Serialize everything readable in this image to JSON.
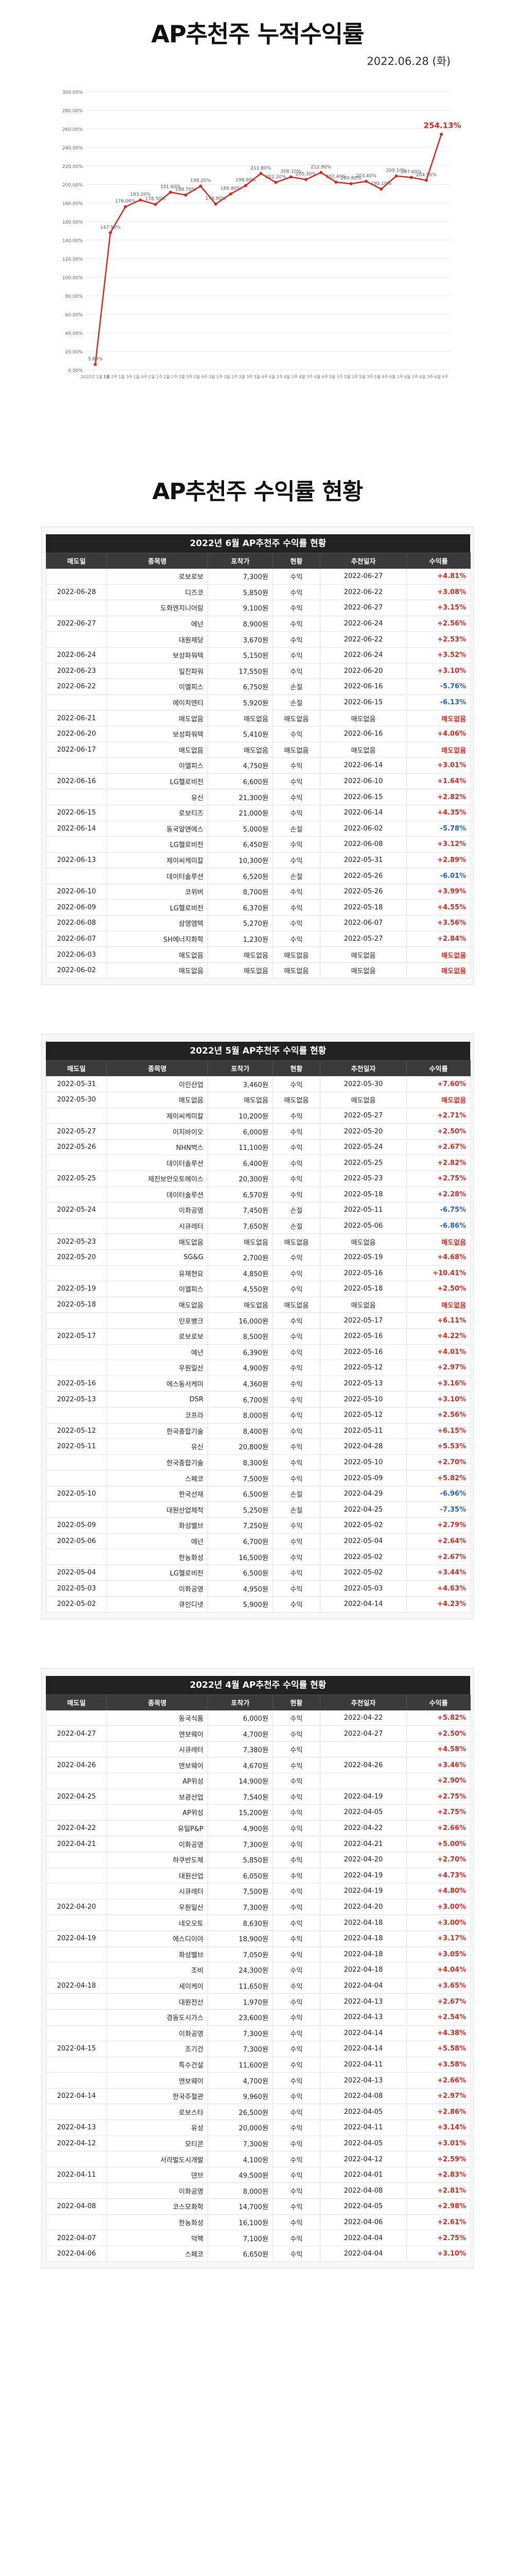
{
  "header": {
    "title": "AP추천주 누적수익률",
    "date": "2022.06.28 (화)"
  },
  "chart_data": {
    "type": "line",
    "title": "",
    "xlabel": "",
    "ylabel": "",
    "ylim": [
      0,
      300
    ],
    "y_ticks": [
      "0.00%",
      "20.00%",
      "40.00%",
      "60.00%",
      "80.00%",
      "100.00%",
      "120.00%",
      "140.00%",
      "160.00%",
      "180.00%",
      "200.00%",
      "220.00%",
      "240.00%",
      "260.00%",
      "280.00%",
      "300.00%"
    ],
    "x": [
      "2022년 1월 1주",
      "1월 2주",
      "1월 3주",
      "1월 4주",
      "2월 1주",
      "2월 2주",
      "2월 3주",
      "2월 4주",
      "3월 1주",
      "3월 2주",
      "3월 3주",
      "3월 4주",
      "4월 1주",
      "4월 2주",
      "4월 3주",
      "4월 4주",
      "5월 1주",
      "5월 2주",
      "5월 3주",
      "5월 4주",
      "6월 1주",
      "6월 2주",
      "6월 3주",
      "6월 4주"
    ],
    "values": [
      5.9,
      147.9,
      176.0,
      183.2,
      178.5,
      191.6,
      188.7,
      198.2,
      178.9,
      189.8,
      198.9,
      211.8,
      202.2,
      208.1,
      205.3,
      212.9,
      202.4,
      200.8,
      203.4,
      195.1,
      209.1,
      207.6,
      204.5,
      254.13
    ],
    "point_labels": [
      "5.89%",
      "147.90%",
      "176.00%",
      "183.20%",
      "178.50%",
      "191.60%",
      "188.70%",
      "198.20%",
      "178.90%",
      "189.80%",
      "198.90%",
      "211.80%",
      "202.20%",
      "208.10%",
      "205.30%",
      "212.90%",
      "202.40%",
      "200.80%",
      "203.40%",
      "195.10%",
      "209.10%",
      "207.60%",
      "204.50%",
      "254.13%"
    ],
    "grid": true,
    "color": "#e0261d"
  },
  "section": {
    "title": "AP추천주 수익률 현황"
  },
  "columns": [
    "매도일",
    "종목명",
    "포착가",
    "현황",
    "추천일자",
    "수익률"
  ],
  "tables": [
    {
      "caption": "2022년 6월 AP추천주 수익률 현황",
      "rows": [
        [
          "",
          "로보로보",
          "7,300원",
          "수익",
          "2022-06-27",
          "+4.81%"
        ],
        [
          "2022-06-28",
          "디즈코",
          "5,850원",
          "수익",
          "2022-06-22",
          "+3.08%"
        ],
        [
          "",
          "도화엔지니어링",
          "9,100원",
          "수익",
          "2022-06-27",
          "+3.15%"
        ],
        [
          "2022-06-27",
          "에넌",
          "8,900원",
          "수익",
          "2022-06-24",
          "+2.56%"
        ],
        [
          "",
          "대원제당",
          "3,670원",
          "수익",
          "2022-06-22",
          "+2.53%"
        ],
        [
          "2022-06-24",
          "보성파워텍",
          "5,150원",
          "수익",
          "2022-06-24",
          "+3.52%"
        ],
        [
          "2022-06-23",
          "일진파워",
          "17,550원",
          "수익",
          "2022-06-20",
          "+3.10%"
        ],
        [
          "2022-06-22",
          "이엘피스",
          "6,750원",
          "손절",
          "2022-06-16",
          "-5.76%"
        ],
        [
          "",
          "에이치엔티",
          "5,920원",
          "손절",
          "2022-06-15",
          "-6.13%"
        ],
        [
          "2022-06-21",
          "매도없음",
          "매도없음",
          "매도없음",
          "매도없음",
          "매도없음"
        ],
        [
          "2022-06-20",
          "보성파워텍",
          "5,410원",
          "수익",
          "2022-06-16",
          "+4.06%"
        ],
        [
          "2022-06-17",
          "매도없음",
          "매도없음",
          "매도없음",
          "매도없음",
          "매도없음"
        ],
        [
          "",
          "이엘피스",
          "4,750원",
          "수익",
          "2022-06-14",
          "+3.01%"
        ],
        [
          "2022-06-16",
          "LG헬로비전",
          "6,600원",
          "수익",
          "2022-06-10",
          "+1.64%"
        ],
        [
          "",
          "유신",
          "21,300원",
          "수익",
          "2022-06-15",
          "+2.82%"
        ],
        [
          "2022-06-15",
          "로보티즈",
          "21,000원",
          "수익",
          "2022-06-14",
          "+4.35%"
        ],
        [
          "2022-06-14",
          "동국알앤에스",
          "5,000원",
          "손절",
          "2022-06-02",
          "-5.78%"
        ],
        [
          "",
          "LG헬로비전",
          "6,450원",
          "수익",
          "2022-06-08",
          "+3.12%"
        ],
        [
          "2022-06-13",
          "제이씨케미칼",
          "10,300원",
          "수익",
          "2022-05-31",
          "+2.89%"
        ],
        [
          "",
          "데이터솔루션",
          "6,520원",
          "손절",
          "2022-05-26",
          "-6.01%"
        ],
        [
          "2022-06-10",
          "코위버",
          "8,700원",
          "수익",
          "2022-05-26",
          "+3.99%"
        ],
        [
          "2022-06-09",
          "LG헬로비전",
          "6,370원",
          "수익",
          "2022-05-18",
          "+4.55%"
        ],
        [
          "2022-06-08",
          "삼영엠텍",
          "5,270원",
          "수익",
          "2022-06-07",
          "+3.56%"
        ],
        [
          "2022-06-07",
          "SH에너지화학",
          "1,230원",
          "수익",
          "2022-05-27",
          "+2.84%"
        ],
        [
          "2022-06-03",
          "매도없음",
          "매도없음",
          "매도없음",
          "매도없음",
          "매도없음"
        ],
        [
          "2022-06-02",
          "매도없음",
          "매도없음",
          "매도없음",
          "매도없음",
          "매도없음"
        ]
      ]
    },
    {
      "caption": "2022년 5월 AP추천주 수익률 현황",
      "rows": [
        [
          "2022-05-31",
          "이인산업",
          "3,460원",
          "수익",
          "2022-05-30",
          "+7.60%"
        ],
        [
          "2022-05-30",
          "매도없음",
          "매도없음",
          "매도없음",
          "매도없음",
          "매도없음"
        ],
        [
          "",
          "제이씨케미칼",
          "10,200원",
          "수익",
          "2022-05-27",
          "+2.71%"
        ],
        [
          "2022-05-27",
          "이지바이오",
          "6,000원",
          "수익",
          "2022-05-20",
          "+2.50%"
        ],
        [
          "2022-05-26",
          "NHN벅스",
          "11,100원",
          "수익",
          "2022-05-24",
          "+2.67%"
        ],
        [
          "",
          "데이터솔루션",
          "6,400원",
          "수익",
          "2022-05-25",
          "+2.82%"
        ],
        [
          "2022-05-25",
          "제진보안오토메이스",
          "20,300원",
          "수익",
          "2022-05-23",
          "+2.75%"
        ],
        [
          "",
          "데이터솔루션",
          "6,570원",
          "수익",
          "2022-05-18",
          "+2.28%"
        ],
        [
          "2022-05-24",
          "이화공영",
          "7,450원",
          "손절",
          "2022-05-11",
          "-6.75%"
        ],
        [
          "",
          "시큐레터",
          "7,650원",
          "손절",
          "2022-05-06",
          "-6.86%"
        ],
        [
          "2022-05-23",
          "매도없음",
          "매도없음",
          "매도없음",
          "매도없음",
          "매도없음"
        ],
        [
          "2022-05-20",
          "SG&G",
          "2,700원",
          "수익",
          "2022-05-19",
          "+4.68%"
        ],
        [
          "",
          "유채현요",
          "4,850원",
          "수익",
          "2022-05-16",
          "+10.41%"
        ],
        [
          "2022-05-19",
          "이엘피스",
          "4,550원",
          "수익",
          "2022-05-18",
          "+2.50%"
        ],
        [
          "2022-05-18",
          "매도없음",
          "매도없음",
          "매도없음",
          "매도없음",
          "매도없음"
        ],
        [
          "",
          "인포뱅크",
          "16,000원",
          "수익",
          "2022-05-17",
          "+6.11%"
        ],
        [
          "2022-05-17",
          "로보로보",
          "8,500원",
          "수익",
          "2022-05-16",
          "+4.22%"
        ],
        [
          "",
          "에넌",
          "6,390원",
          "수익",
          "2022-05-16",
          "+4.01%"
        ],
        [
          "",
          "우원일산",
          "4,900원",
          "수익",
          "2022-05-12",
          "+2.97%"
        ],
        [
          "2022-05-16",
          "에스동서케미",
          "4,360원",
          "수익",
          "2022-05-13",
          "+3.16%"
        ],
        [
          "2022-05-13",
          "DSR",
          "6,700원",
          "수익",
          "2022-05-10",
          "+3.10%"
        ],
        [
          "",
          "코프라",
          "8,000원",
          "수익",
          "2022-05-12",
          "+2.56%"
        ],
        [
          "2022-05-12",
          "한국종합기술",
          "8,400원",
          "수익",
          "2022-05-11",
          "+6.15%"
        ],
        [
          "2022-05-11",
          "유신",
          "20,800원",
          "수익",
          "2022-04-28",
          "+5.53%"
        ],
        [
          "",
          "한국종합기술",
          "8,300원",
          "수익",
          "2022-05-10",
          "+2.70%"
        ],
        [
          "",
          "스페코",
          "7,500원",
          "수익",
          "2022-05-09",
          "+5.82%"
        ],
        [
          "2022-05-10",
          "한국선재",
          "6,500원",
          "손절",
          "2022-04-29",
          "-6.96%"
        ],
        [
          "",
          "대원산업체적",
          "5,250원",
          "손절",
          "2022-04-25",
          "-7.35%"
        ],
        [
          "2022-05-09",
          "화성밸브",
          "7,250원",
          "수익",
          "2022-05-02",
          "+2.79%"
        ],
        [
          "2022-05-06",
          "에넌",
          "6,700원",
          "수익",
          "2022-05-04",
          "+2.64%"
        ],
        [
          "",
          "한농화성",
          "16,500원",
          "수익",
          "2022-05-02",
          "+2.67%"
        ],
        [
          "2022-05-04",
          "LG헬로비전",
          "6,500원",
          "수익",
          "2022-05-02",
          "+3.44%"
        ],
        [
          "2022-05-03",
          "이화공영",
          "4,950원",
          "수익",
          "2022-05-03",
          "+4.63%"
        ],
        [
          "2022-05-02",
          "큐인디넷",
          "5,900원",
          "수익",
          "2022-04-14",
          "+4.23%"
        ]
      ]
    },
    {
      "caption": "2022년 4월 AP추천주 수익률 현황",
      "rows": [
        [
          "",
          "동국식품",
          "6,000원",
          "수익",
          "2022-04-22",
          "+5.82%"
        ],
        [
          "2022-04-27",
          "엔보웨이",
          "4,700원",
          "수익",
          "2022-04-27",
          "+2.50%"
        ],
        [
          "",
          "시큐레터",
          "7,380원",
          "수익",
          "",
          "+4.58%"
        ],
        [
          "2022-04-26",
          "엔보웨이",
          "4,670원",
          "수익",
          "2022-04-26",
          "+3.46%"
        ],
        [
          "",
          "AP위성",
          "14,900원",
          "수익",
          "",
          "+2.90%"
        ],
        [
          "2022-04-25",
          "보광산업",
          "7,540원",
          "수익",
          "2022-04-19",
          "+2.75%"
        ],
        [
          "",
          "AP위성",
          "15,200원",
          "수익",
          "2022-04-05",
          "+2.75%"
        ],
        [
          "2022-04-22",
          "유일P&P",
          "4,900원",
          "수익",
          "2022-04-22",
          "+2.66%"
        ],
        [
          "2022-04-21",
          "이화공영",
          "7,300원",
          "수익",
          "2022-04-21",
          "+5.00%"
        ],
        [
          "",
          "하쿠반도체",
          "5,850원",
          "수익",
          "2022-04-20",
          "+2.70%"
        ],
        [
          "",
          "대원산업",
          "6,050원",
          "수익",
          "2022-04-19",
          "+4.73%"
        ],
        [
          "",
          "시큐레터",
          "7,500원",
          "수익",
          "2022-04-19",
          "+4.80%"
        ],
        [
          "2022-04-20",
          "우원일산",
          "7,300원",
          "수익",
          "2022-04-20",
          "+3.00%"
        ],
        [
          "",
          "네오오토",
          "8,630원",
          "수익",
          "2022-04-18",
          "+3.00%"
        ],
        [
          "2022-04-19",
          "에스디이야",
          "18,900원",
          "수익",
          "2022-04-18",
          "+3.17%"
        ],
        [
          "",
          "화성밸브",
          "7,050원",
          "수익",
          "2022-04-18",
          "+3.05%"
        ],
        [
          "",
          "조비",
          "24,300원",
          "수익",
          "2022-04-18",
          "+4.04%"
        ],
        [
          "2022-04-18",
          "세이케이",
          "11,650원",
          "수익",
          "2022-04-04",
          "+3.65%"
        ],
        [
          "",
          "대원전선",
          "1,970원",
          "수익",
          "2022-04-13",
          "+2.67%"
        ],
        [
          "",
          "경동도시가스",
          "23,600원",
          "수익",
          "2022-04-13",
          "+2.54%"
        ],
        [
          "",
          "이화공영",
          "7,300원",
          "수익",
          "2022-04-14",
          "+4.38%"
        ],
        [
          "2022-04-15",
          "조기건",
          "7,300원",
          "수익",
          "2022-04-14",
          "+5.58%"
        ],
        [
          "",
          "특수건설",
          "11,600원",
          "수익",
          "2022-04-11",
          "+3.58%"
        ],
        [
          "",
          "엔보웨이",
          "4,700원",
          "수익",
          "2022-04-13",
          "+2.66%"
        ],
        [
          "2022-04-14",
          "한국주철관",
          "9,960원",
          "수익",
          "2022-04-08",
          "+2.97%"
        ],
        [
          "",
          "로보스타",
          "26,500원",
          "수익",
          "2022-04-05",
          "+2.86%"
        ],
        [
          "2022-04-13",
          "유성",
          "20,000원",
          "수익",
          "2022-04-11",
          "+3.14%"
        ],
        [
          "2022-04-12",
          "모티콘",
          "7,300원",
          "수익",
          "2022-04-05",
          "+3.01%"
        ],
        [
          "",
          "서라벌도시개발",
          "4,100원",
          "수익",
          "2022-04-12",
          "+2.59%"
        ],
        [
          "2022-04-11",
          "덴브",
          "49,500원",
          "수익",
          "2022-04-01",
          "+2.83%"
        ],
        [
          "",
          "이화공영",
          "8,000원",
          "수익",
          "2022-04-08",
          "+2.81%"
        ],
        [
          "2022-04-08",
          "코스모화학",
          "14,700원",
          "수익",
          "2022-04-05",
          "+2.98%"
        ],
        [
          "",
          "한농화성",
          "16,100원",
          "수익",
          "2022-04-06",
          "+2.61%"
        ],
        [
          "2022-04-07",
          "덕팩",
          "7,100원",
          "수익",
          "2022-04-04",
          "+2.75%"
        ],
        [
          "2022-04-06",
          "스페코",
          "6,650원",
          "수익",
          "2022-04-04",
          "+3.10%"
        ]
      ]
    }
  ]
}
